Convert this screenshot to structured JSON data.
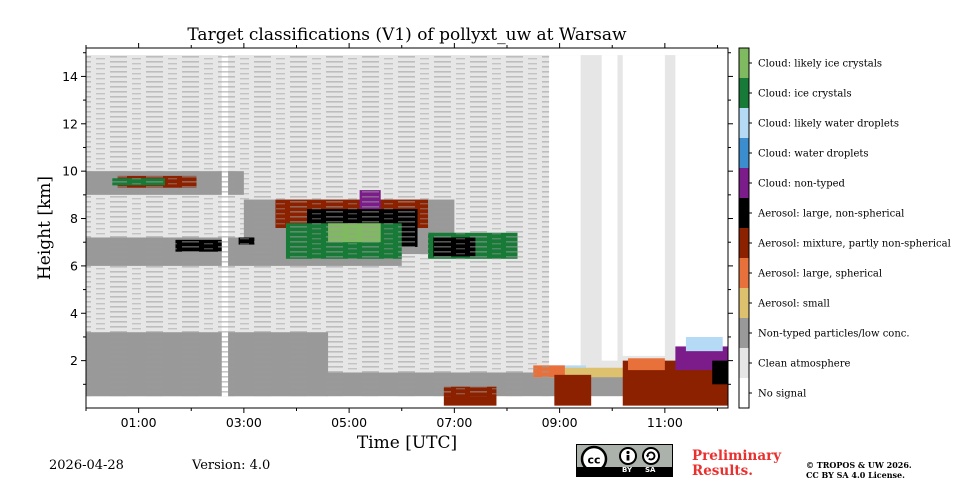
{
  "chart_data": {
    "type": "heatmap",
    "title": "Target classifications (V1) of pollyxt_uw at Warsaw",
    "xlabel": "Time [UTC]",
    "ylabel": "Height [km]",
    "xlim": [
      0.0,
      12.2
    ],
    "ylim": [
      0.0,
      15.2
    ],
    "xticks": [
      {
        "value": 1,
        "label": "01:00"
      },
      {
        "value": 3,
        "label": "03:00"
      },
      {
        "value": 5,
        "label": "05:00"
      },
      {
        "value": 7,
        "label": "07:00"
      },
      {
        "value": 9,
        "label": "09:00"
      },
      {
        "value": 11,
        "label": "11:00"
      }
    ],
    "yticks": [
      {
        "value": 2,
        "label": "2"
      },
      {
        "value": 4,
        "label": "4"
      },
      {
        "value": 6,
        "label": "6"
      },
      {
        "value": 8,
        "label": "8"
      },
      {
        "value": 10,
        "label": "10"
      },
      {
        "value": 12,
        "label": "12"
      },
      {
        "value": 14,
        "label": "14"
      }
    ],
    "classes": [
      {
        "label": "No signal",
        "color": "#ffffff"
      },
      {
        "label": "Clean atmosphere",
        "color": "#e6e6e6"
      },
      {
        "label": "Non-typed particles/low conc.",
        "color": "#999999"
      },
      {
        "label": "Aerosol: small",
        "color": "#dec16e"
      },
      {
        "label": "Aerosol: large, spherical",
        "color": "#e8703a"
      },
      {
        "label": "Aerosol: mixture, partly non-spherical",
        "color": "#8c2100"
      },
      {
        "label": "Aerosol: large, non-spherical",
        "color": "#000000"
      },
      {
        "label": "Cloud: non-typed",
        "color": "#7b1c8a"
      },
      {
        "label": "Cloud: water droplets",
        "color": "#3b8dce"
      },
      {
        "label": "Cloud: likely water droplets",
        "color": "#b5daf5"
      },
      {
        "label": "Cloud: ice crystals",
        "color": "#177a37"
      },
      {
        "label": "Cloud: likely ice crystals",
        "color": "#7fba60"
      }
    ],
    "regions": [
      {
        "class": "Clean atmosphere",
        "time": [
          0.0,
          12.2
        ],
        "height": [
          0.5,
          14.9
        ]
      },
      {
        "class": "Non-typed particles/low conc.",
        "time": [
          0.0,
          4.6
        ],
        "height": [
          0.5,
          3.2
        ]
      },
      {
        "class": "Non-typed particles/low conc.",
        "time": [
          0.0,
          12.1
        ],
        "height": [
          0.5,
          1.5
        ]
      },
      {
        "class": "Non-typed particles/low conc.",
        "time": [
          0.0,
          3.0
        ],
        "height": [
          9.0,
          10.0
        ]
      },
      {
        "class": "Non-typed particles/low conc.",
        "time": [
          0.0,
          6.0
        ],
        "height": [
          6.0,
          7.2
        ]
      },
      {
        "class": "Non-typed particles/low conc.",
        "time": [
          3.0,
          7.0
        ],
        "height": [
          6.5,
          8.8
        ]
      },
      {
        "class": "Aerosol: mixture, partly non-spherical",
        "time": [
          0.6,
          2.1
        ],
        "height": [
          9.3,
          9.8
        ]
      },
      {
        "class": "Cloud: ice crystals",
        "time": [
          0.5,
          1.5
        ],
        "height": [
          9.4,
          9.7
        ]
      },
      {
        "class": "Aerosol: large, non-spherical",
        "time": [
          1.7,
          2.6
        ],
        "height": [
          6.6,
          7.1
        ]
      },
      {
        "class": "Aerosol: large, non-spherical",
        "time": [
          2.9,
          3.2
        ],
        "height": [
          6.9,
          7.2
        ]
      },
      {
        "class": "Aerosol: mixture, partly non-spherical",
        "time": [
          3.6,
          6.5
        ],
        "height": [
          7.6,
          8.8
        ]
      },
      {
        "class": "Aerosol: large, non-spherical",
        "time": [
          4.2,
          6.3
        ],
        "height": [
          6.8,
          8.4
        ]
      },
      {
        "class": "Cloud: ice crystals",
        "time": [
          3.8,
          6.0
        ],
        "height": [
          6.3,
          7.8
        ]
      },
      {
        "class": "Cloud: likely ice crystals",
        "time": [
          4.6,
          5.6
        ],
        "height": [
          7.0,
          7.8
        ]
      },
      {
        "class": "Cloud: ice crystals",
        "time": [
          6.5,
          8.2
        ],
        "height": [
          6.3,
          7.4
        ]
      },
      {
        "class": "Aerosol: large, non-spherical",
        "time": [
          6.6,
          7.4
        ],
        "height": [
          6.4,
          7.2
        ]
      },
      {
        "class": "Cloud: non-typed",
        "time": [
          5.2,
          5.6
        ],
        "height": [
          8.4,
          9.2
        ]
      },
      {
        "class": "No signal",
        "time": [
          8.8,
          9.4
        ],
        "height": [
          1.6,
          14.9
        ]
      },
      {
        "class": "No signal",
        "time": [
          9.8,
          10.1
        ],
        "height": [
          2.0,
          14.9
        ]
      },
      {
        "class": "No signal",
        "time": [
          10.2,
          11.0
        ],
        "height": [
          2.2,
          14.9
        ]
      },
      {
        "class": "No signal",
        "time": [
          11.2,
          12.2
        ],
        "height": [
          2.2,
          14.9
        ]
      },
      {
        "class": "Cloud: likely water droplets",
        "time": [
          8.8,
          9.5
        ],
        "height": [
          1.3,
          1.8
        ]
      },
      {
        "class": "Aerosol: small",
        "time": [
          8.5,
          10.8
        ],
        "height": [
          1.3,
          1.7
        ]
      },
      {
        "class": "Aerosol: large, spherical",
        "time": [
          8.5,
          9.1
        ],
        "height": [
          1.3,
          1.8
        ]
      },
      {
        "class": "Aerosol: mixture, partly non-spherical",
        "time": [
          8.9,
          9.6
        ],
        "height": [
          0.1,
          1.4
        ]
      },
      {
        "class": "Aerosol: mixture, partly non-spherical",
        "time": [
          10.2,
          12.2
        ],
        "height": [
          0.1,
          2.0
        ]
      },
      {
        "class": "Aerosol: large, spherical",
        "time": [
          10.3,
          11.0
        ],
        "height": [
          1.6,
          2.1
        ]
      },
      {
        "class": "Cloud: non-typed",
        "time": [
          11.2,
          12.2
        ],
        "height": [
          1.6,
          2.6
        ]
      },
      {
        "class": "Aerosol: large, non-spherical",
        "time": [
          11.9,
          12.2
        ],
        "height": [
          1.0,
          2.0
        ]
      },
      {
        "class": "Aerosol: mixture, partly non-spherical",
        "time": [
          6.8,
          7.8
        ],
        "height": [
          0.1,
          0.9
        ]
      },
      {
        "class": "Cloud: likely water droplets",
        "time": [
          11.4,
          12.1
        ],
        "height": [
          2.4,
          3.0
        ]
      },
      {
        "class": "No signal",
        "time": [
          2.58,
          2.7
        ],
        "height": [
          0.0,
          15.2
        ]
      }
    ]
  },
  "footer": {
    "date": "2026-04-28",
    "version": "Version: 4.0",
    "preliminary_line1": "Preliminary",
    "preliminary_line2": "Results.",
    "copyright_line1": "© TROPOS & UW 2026.",
    "copyright_line2": "CC BY SA 4.0 License.",
    "license_logo_text": "cc BY SA"
  }
}
